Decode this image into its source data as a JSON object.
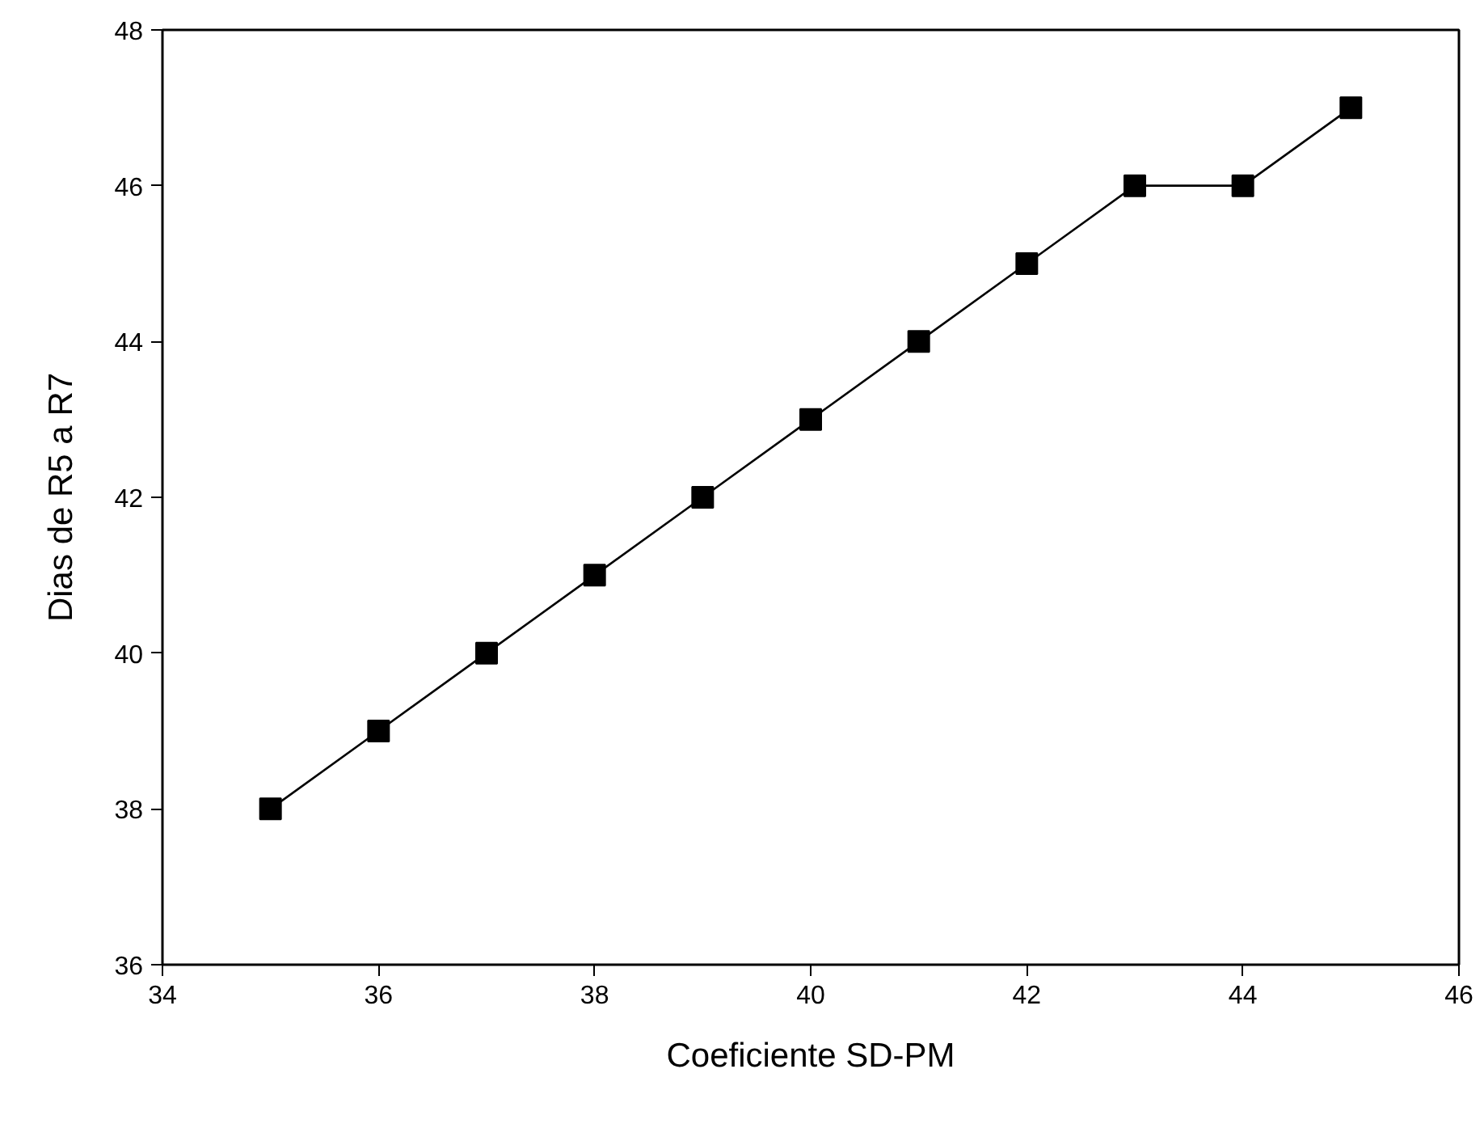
{
  "chart_data": {
    "type": "line",
    "xlabel": "Coeficiente SD-PM",
    "ylabel": "Dias de R5 a R7",
    "x": [
      35,
      36,
      37,
      38,
      39,
      40,
      41,
      42,
      43,
      44,
      45
    ],
    "series": [
      {
        "color": "#000000",
        "values": [
          38,
          39,
          40,
          41,
          42,
          43,
          44,
          45,
          46,
          46,
          47
        ]
      }
    ],
    "xlim": [
      34,
      46
    ],
    "xticks": [
      34,
      36,
      38,
      40,
      42,
      44,
      46
    ],
    "ylim": [
      36,
      48
    ],
    "yticks": [
      36,
      38,
      40,
      42,
      44,
      46,
      48
    ],
    "grid": false,
    "marker": "square",
    "line_style": "solid"
  }
}
